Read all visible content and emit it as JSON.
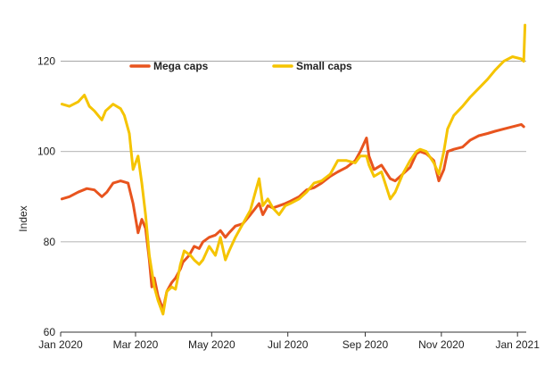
{
  "chart_data": {
    "type": "line",
    "title": "",
    "xlabel": "",
    "ylabel": "Index",
    "ylim": [
      60,
      130
    ],
    "xlim": [
      "2020-01-01",
      "2021-01-08"
    ],
    "grid": "horizontal",
    "legend_placement": "top",
    "yticks": [
      60,
      80,
      100,
      120
    ],
    "xticks": [
      {
        "date": "2020-01-01",
        "label": "Jan 2020"
      },
      {
        "date": "2020-03-01",
        "label": "Mar 2020"
      },
      {
        "date": "2020-05-01",
        "label": "May 2020"
      },
      {
        "date": "2020-07-01",
        "label": "Jul 2020"
      },
      {
        "date": "2020-09-01",
        "label": "Sep 2020"
      },
      {
        "date": "2020-11-01",
        "label": "Nov 2020"
      },
      {
        "date": "2021-01-01",
        "label": "Jan 2021"
      }
    ],
    "series": [
      {
        "name": "Mega caps",
        "color": "#E8541E",
        "points": [
          [
            "2020-01-02",
            89.5
          ],
          [
            "2020-01-08",
            90
          ],
          [
            "2020-01-15",
            91
          ],
          [
            "2020-01-22",
            91.8
          ],
          [
            "2020-01-28",
            91.5
          ],
          [
            "2020-02-03",
            90
          ],
          [
            "2020-02-07",
            91
          ],
          [
            "2020-02-12",
            93
          ],
          [
            "2020-02-18",
            93.5
          ],
          [
            "2020-02-24",
            93
          ],
          [
            "2020-02-28",
            88.5
          ],
          [
            "2020-03-03",
            82
          ],
          [
            "2020-03-06",
            85
          ],
          [
            "2020-03-09",
            83
          ],
          [
            "2020-03-12",
            76
          ],
          [
            "2020-03-14",
            70
          ],
          [
            "2020-03-16",
            72
          ],
          [
            "2020-03-19",
            68
          ],
          [
            "2020-03-23",
            65
          ],
          [
            "2020-03-26",
            69
          ],
          [
            "2020-03-30",
            71
          ],
          [
            "2020-04-02",
            72
          ],
          [
            "2020-04-06",
            74
          ],
          [
            "2020-04-08",
            75.5
          ],
          [
            "2020-04-13",
            77
          ],
          [
            "2020-04-17",
            79
          ],
          [
            "2020-04-21",
            78.5
          ],
          [
            "2020-04-24",
            80
          ],
          [
            "2020-04-29",
            81
          ],
          [
            "2020-05-04",
            81.5
          ],
          [
            "2020-05-08",
            82.5
          ],
          [
            "2020-05-12",
            81
          ],
          [
            "2020-05-15",
            82
          ],
          [
            "2020-05-20",
            83.5
          ],
          [
            "2020-05-26",
            84
          ],
          [
            "2020-06-01",
            86
          ],
          [
            "2020-06-08",
            88.5
          ],
          [
            "2020-06-11",
            86
          ],
          [
            "2020-06-15",
            88
          ],
          [
            "2020-06-19",
            87.5
          ],
          [
            "2020-06-24",
            88
          ],
          [
            "2020-06-29",
            88.5
          ],
          [
            "2020-07-03",
            89
          ],
          [
            "2020-07-10",
            90
          ],
          [
            "2020-07-16",
            91.5
          ],
          [
            "2020-07-22",
            92
          ],
          [
            "2020-07-28",
            93
          ],
          [
            "2020-08-04",
            94.5
          ],
          [
            "2020-08-10",
            95.5
          ],
          [
            "2020-08-17",
            96.5
          ],
          [
            "2020-08-24",
            98
          ],
          [
            "2020-08-28",
            100
          ],
          [
            "2020-09-02",
            103
          ],
          [
            "2020-09-04",
            99
          ],
          [
            "2020-09-08",
            96
          ],
          [
            "2020-09-14",
            97
          ],
          [
            "2020-09-21",
            94
          ],
          [
            "2020-09-25",
            93.5
          ],
          [
            "2020-10-01",
            95
          ],
          [
            "2020-10-07",
            96.5
          ],
          [
            "2020-10-12",
            99.5
          ],
          [
            "2020-10-15",
            100
          ],
          [
            "2020-10-20",
            99.5
          ],
          [
            "2020-10-26",
            98
          ],
          [
            "2020-10-30",
            93.5
          ],
          [
            "2020-11-03",
            96
          ],
          [
            "2020-11-06",
            100
          ],
          [
            "2020-11-11",
            100.5
          ],
          [
            "2020-11-18",
            101
          ],
          [
            "2020-11-24",
            102.5
          ],
          [
            "2020-12-01",
            103.5
          ],
          [
            "2020-12-08",
            104
          ],
          [
            "2020-12-14",
            104.5
          ],
          [
            "2020-12-21",
            105
          ],
          [
            "2020-12-28",
            105.5
          ],
          [
            "2021-01-04",
            106
          ],
          [
            "2021-01-06",
            105.5
          ]
        ]
      },
      {
        "name": "Small caps",
        "color": "#F5C400",
        "points": [
          [
            "2020-01-02",
            110.5
          ],
          [
            "2020-01-08",
            110
          ],
          [
            "2020-01-15",
            111
          ],
          [
            "2020-01-20",
            112.5
          ],
          [
            "2020-01-24",
            110
          ],
          [
            "2020-01-28",
            109
          ],
          [
            "2020-02-03",
            107
          ],
          [
            "2020-02-06",
            109
          ],
          [
            "2020-02-12",
            110.5
          ],
          [
            "2020-02-18",
            109.5
          ],
          [
            "2020-02-21",
            108
          ],
          [
            "2020-02-25",
            104
          ],
          [
            "2020-02-28",
            96
          ],
          [
            "2020-03-03",
            99
          ],
          [
            "2020-03-06",
            93
          ],
          [
            "2020-03-09",
            86
          ],
          [
            "2020-03-12",
            77
          ],
          [
            "2020-03-16",
            70
          ],
          [
            "2020-03-19",
            67
          ],
          [
            "2020-03-23",
            64
          ],
          [
            "2020-03-26",
            69
          ],
          [
            "2020-03-30",
            70
          ],
          [
            "2020-04-02",
            69.5
          ],
          [
            "2020-04-06",
            75
          ],
          [
            "2020-04-09",
            78
          ],
          [
            "2020-04-14",
            77
          ],
          [
            "2020-04-17",
            76
          ],
          [
            "2020-04-21",
            75
          ],
          [
            "2020-04-24",
            76
          ],
          [
            "2020-04-29",
            79
          ],
          [
            "2020-05-04",
            77
          ],
          [
            "2020-05-08",
            81
          ],
          [
            "2020-05-12",
            76
          ],
          [
            "2020-05-15",
            78
          ],
          [
            "2020-05-20",
            81
          ],
          [
            "2020-05-26",
            84
          ],
          [
            "2020-06-01",
            87
          ],
          [
            "2020-06-05",
            91
          ],
          [
            "2020-06-08",
            94
          ],
          [
            "2020-06-11",
            88
          ],
          [
            "2020-06-15",
            89.5
          ],
          [
            "2020-06-19",
            87.5
          ],
          [
            "2020-06-24",
            86
          ],
          [
            "2020-06-29",
            88
          ],
          [
            "2020-07-03",
            88.5
          ],
          [
            "2020-07-10",
            89.5
          ],
          [
            "2020-07-16",
            91
          ],
          [
            "2020-07-22",
            93
          ],
          [
            "2020-07-28",
            93.5
          ],
          [
            "2020-08-04",
            95
          ],
          [
            "2020-08-10",
            98
          ],
          [
            "2020-08-17",
            98
          ],
          [
            "2020-08-24",
            97.5
          ],
          [
            "2020-08-28",
            99
          ],
          [
            "2020-09-02",
            99
          ],
          [
            "2020-09-04",
            97
          ],
          [
            "2020-09-08",
            94.5
          ],
          [
            "2020-09-14",
            95.5
          ],
          [
            "2020-09-21",
            89.5
          ],
          [
            "2020-09-25",
            91
          ],
          [
            "2020-10-01",
            95
          ],
          [
            "2020-10-07",
            98
          ],
          [
            "2020-10-12",
            100
          ],
          [
            "2020-10-15",
            100.5
          ],
          [
            "2020-10-20",
            100
          ],
          [
            "2020-10-26",
            97.5
          ],
          [
            "2020-10-30",
            95
          ],
          [
            "2020-11-03",
            100
          ],
          [
            "2020-11-06",
            105
          ],
          [
            "2020-11-11",
            108
          ],
          [
            "2020-11-18",
            110
          ],
          [
            "2020-11-24",
            112
          ],
          [
            "2020-12-01",
            114
          ],
          [
            "2020-12-08",
            116
          ],
          [
            "2020-12-14",
            118
          ],
          [
            "2020-12-21",
            120
          ],
          [
            "2020-12-28",
            121
          ],
          [
            "2021-01-04",
            120.5
          ],
          [
            "2021-01-06",
            120
          ],
          [
            "2021-01-07",
            128
          ]
        ]
      }
    ]
  }
}
